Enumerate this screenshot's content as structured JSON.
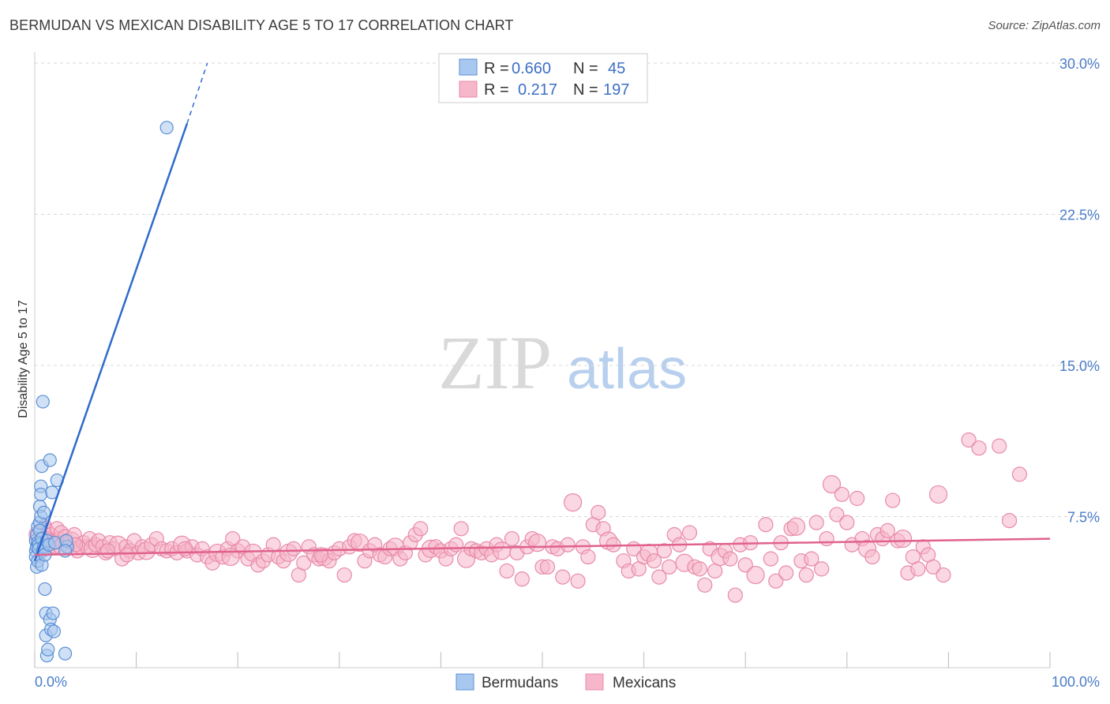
{
  "title": "BERMUDAN VS MEXICAN DISABILITY AGE 5 TO 17 CORRELATION CHART",
  "source": "Source: ZipAtlas.com",
  "watermark": {
    "zip": "ZIP",
    "atlas": "atlas"
  },
  "colors": {
    "blue_fill": "#a9c8ef",
    "blue_stroke": "#5a8fd6",
    "blue_line": "#2f6bcc",
    "pink_fill": "#f6b7cb",
    "pink_stroke": "#e88aa8",
    "pink_line": "#e0628d",
    "grid": "#d8d8d8",
    "tick_text": "#4a7cc9"
  },
  "legend": {
    "bermudans": {
      "r_label": "R =",
      "r_value": "0.660",
      "n_label": "N =",
      "n_value": "45"
    },
    "mexicans": {
      "r_label": "R =",
      "r_value": "0.217",
      "n_label": "N =",
      "n_value": "197"
    }
  },
  "chart_data": {
    "type": "scatter",
    "title": "BERMUDAN VS MEXICAN DISABILITY AGE 5 TO 17 CORRELATION CHART",
    "xlabel": "",
    "ylabel": "Disability Age 5 to 17",
    "xlim": [
      0,
      100
    ],
    "ylim": [
      0,
      30
    ],
    "x_tick_labels": [
      "0.0%",
      "100.0%"
    ],
    "y_ticks": [
      7.5,
      15.0,
      22.5,
      30.0
    ],
    "y_tick_labels": [
      "7.5%",
      "15.0%",
      "22.5%",
      "30.0%"
    ],
    "grid": true,
    "legend_position": "bottom-center",
    "series": [
      {
        "name": "Bermudans",
        "color": "#5a8fd6",
        "r": 0.66,
        "n": 45,
        "trend": {
          "x": [
            0.0,
            15.0
          ],
          "y": [
            5.3,
            27.0
          ],
          "dashed_to": [
            17.0,
            30.0
          ]
        },
        "points": [
          [
            0.1,
            6.3
          ],
          [
            0.1,
            5.8
          ],
          [
            0.1,
            5.5
          ],
          [
            0.2,
            5.0
          ],
          [
            0.2,
            6.0
          ],
          [
            0.2,
            6.6
          ],
          [
            0.3,
            7.0
          ],
          [
            0.3,
            6.2
          ],
          [
            0.3,
            5.3
          ],
          [
            0.4,
            6.1
          ],
          [
            0.4,
            5.9
          ],
          [
            0.5,
            8.0
          ],
          [
            0.5,
            7.2
          ],
          [
            0.5,
            6.8
          ],
          [
            0.6,
            9.0
          ],
          [
            0.6,
            8.6
          ],
          [
            0.6,
            7.5
          ],
          [
            0.7,
            10.0
          ],
          [
            0.7,
            6.4
          ],
          [
            0.7,
            5.1
          ],
          [
            0.8,
            13.2
          ],
          [
            0.8,
            5.8
          ],
          [
            0.9,
            7.7
          ],
          [
            0.9,
            6.0
          ],
          [
            1.0,
            3.9
          ],
          [
            1.0,
            5.6
          ],
          [
            1.1,
            2.7
          ],
          [
            1.1,
            1.6
          ],
          [
            1.2,
            0.6
          ],
          [
            1.2,
            6.3
          ],
          [
            1.3,
            0.9
          ],
          [
            1.4,
            6.1
          ],
          [
            1.5,
            10.3
          ],
          [
            1.5,
            2.4
          ],
          [
            1.6,
            1.9
          ],
          [
            1.7,
            8.7
          ],
          [
            1.8,
            2.7
          ],
          [
            1.9,
            1.8
          ],
          [
            2.0,
            6.2
          ],
          [
            2.2,
            9.3
          ],
          [
            3.0,
            0.7
          ],
          [
            3.2,
            6.0
          ],
          [
            3.1,
            6.3
          ],
          [
            3.0,
            5.8
          ],
          [
            13.0,
            26.8
          ]
        ]
      },
      {
        "name": "Mexicans",
        "color": "#e88aa8",
        "r": 0.217,
        "n": 197,
        "trend": {
          "x": [
            0.0,
            100.0
          ],
          "y": [
            5.6,
            6.4
          ]
        },
        "points": [
          [
            0.5,
            6.5
          ],
          [
            0.8,
            6.2
          ],
          [
            1.0,
            7.0
          ],
          [
            1.2,
            6.8
          ],
          [
            1.4,
            6.0
          ],
          [
            1.6,
            6.6
          ],
          [
            1.8,
            6.3
          ],
          [
            2.0,
            6.1
          ],
          [
            2.2,
            6.9
          ],
          [
            2.4,
            6.4
          ],
          [
            2.6,
            6.7
          ],
          [
            2.8,
            6.2
          ],
          [
            3.0,
            6.5
          ],
          [
            3.3,
            6.0
          ],
          [
            3.6,
            6.3
          ],
          [
            3.9,
            6.6
          ],
          [
            4.2,
            5.8
          ],
          [
            4.5,
            6.0
          ],
          [
            4.8,
            6.2
          ],
          [
            5.1,
            6.0
          ],
          [
            5.4,
            6.4
          ],
          [
            5.7,
            5.9
          ],
          [
            6.0,
            6.1
          ],
          [
            6.3,
            6.3
          ],
          [
            6.7,
            6.0
          ],
          [
            7.0,
            5.7
          ],
          [
            7.4,
            6.2
          ],
          [
            7.8,
            5.9
          ],
          [
            8.2,
            6.1
          ],
          [
            8.6,
            5.4
          ],
          [
            9.0,
            6.0
          ],
          [
            9.4,
            5.8
          ],
          [
            9.8,
            6.3
          ],
          [
            10.2,
            5.7
          ],
          [
            10.6,
            6.0
          ],
          [
            11.0,
            5.8
          ],
          [
            11.5,
            6.1
          ],
          [
            12.0,
            6.4
          ],
          [
            12.5,
            5.9
          ],
          [
            13.0,
            5.8
          ],
          [
            13.5,
            5.9
          ],
          [
            14.0,
            5.7
          ],
          [
            14.5,
            6.1
          ],
          [
            15.0,
            5.8
          ],
          [
            15.5,
            6.0
          ],
          [
            16.0,
            5.6
          ],
          [
            16.5,
            5.9
          ],
          [
            17.0,
            5.5
          ],
          [
            17.5,
            5.2
          ],
          [
            18.0,
            5.7
          ],
          [
            18.5,
            5.5
          ],
          [
            19.0,
            5.9
          ],
          [
            19.5,
            6.4
          ],
          [
            20.0,
            5.8
          ],
          [
            20.5,
            6.0
          ],
          [
            21.0,
            5.4
          ],
          [
            21.5,
            5.7
          ],
          [
            22.0,
            5.1
          ],
          [
            22.5,
            5.3
          ],
          [
            23.0,
            5.6
          ],
          [
            23.5,
            6.1
          ],
          [
            24.0,
            5.5
          ],
          [
            24.5,
            5.3
          ],
          [
            25.0,
            5.7
          ],
          [
            25.5,
            5.9
          ],
          [
            26.0,
            4.6
          ],
          [
            26.5,
            5.2
          ],
          [
            27.0,
            6.0
          ],
          [
            27.5,
            5.6
          ],
          [
            28.0,
            5.4
          ],
          [
            28.5,
            5.5
          ],
          [
            29.0,
            5.3
          ],
          [
            29.5,
            5.7
          ],
          [
            30.0,
            5.9
          ],
          [
            30.5,
            4.6
          ],
          [
            31.0,
            6.0
          ],
          [
            31.5,
            6.3
          ],
          [
            32.0,
            6.2
          ],
          [
            32.5,
            5.3
          ],
          [
            33.0,
            5.8
          ],
          [
            33.5,
            6.1
          ],
          [
            34.0,
            5.6
          ],
          [
            34.5,
            5.5
          ],
          [
            35.0,
            5.9
          ],
          [
            35.5,
            6.0
          ],
          [
            36.0,
            5.4
          ],
          [
            36.5,
            5.7
          ],
          [
            37.0,
            6.2
          ],
          [
            37.5,
            6.6
          ],
          [
            38.0,
            6.9
          ],
          [
            38.5,
            5.6
          ],
          [
            39.0,
            5.9
          ],
          [
            39.5,
            6.0
          ],
          [
            40.0,
            5.8
          ],
          [
            40.5,
            5.4
          ],
          [
            41.0,
            5.9
          ],
          [
            41.5,
            6.1
          ],
          [
            42.0,
            6.9
          ],
          [
            42.5,
            5.4
          ],
          [
            43.0,
            5.9
          ],
          [
            43.5,
            5.8
          ],
          [
            44.0,
            5.7
          ],
          [
            44.5,
            5.9
          ],
          [
            45.0,
            5.6
          ],
          [
            45.5,
            6.1
          ],
          [
            46.0,
            5.8
          ],
          [
            46.5,
            4.8
          ],
          [
            47.0,
            6.4
          ],
          [
            47.5,
            5.7
          ],
          [
            48.0,
            4.4
          ],
          [
            48.5,
            6.0
          ],
          [
            49.0,
            6.4
          ],
          [
            49.5,
            6.2
          ],
          [
            50.0,
            5.0
          ],
          [
            50.5,
            5.0
          ],
          [
            51.0,
            6.0
          ],
          [
            51.5,
            5.9
          ],
          [
            52.0,
            4.5
          ],
          [
            52.5,
            6.1
          ],
          [
            53.0,
            8.2
          ],
          [
            53.5,
            4.3
          ],
          [
            54.0,
            6.0
          ],
          [
            54.5,
            5.5
          ],
          [
            55.0,
            7.1
          ],
          [
            55.5,
            7.7
          ],
          [
            56.0,
            6.9
          ],
          [
            56.5,
            6.3
          ],
          [
            57.0,
            6.1
          ],
          [
            58.0,
            5.3
          ],
          [
            58.5,
            4.8
          ],
          [
            59.0,
            5.9
          ],
          [
            59.5,
            4.9
          ],
          [
            60.0,
            5.5
          ],
          [
            60.5,
            5.7
          ],
          [
            61.0,
            5.3
          ],
          [
            61.5,
            4.5
          ],
          [
            62.0,
            5.8
          ],
          [
            62.5,
            5.0
          ],
          [
            63.0,
            6.6
          ],
          [
            63.5,
            6.1
          ],
          [
            64.0,
            5.2
          ],
          [
            64.5,
            6.7
          ],
          [
            65.0,
            5.0
          ],
          [
            65.5,
            4.9
          ],
          [
            66.0,
            4.1
          ],
          [
            66.5,
            5.9
          ],
          [
            67.0,
            4.8
          ],
          [
            67.5,
            5.5
          ],
          [
            68.0,
            5.8
          ],
          [
            68.5,
            5.4
          ],
          [
            69.0,
            3.6
          ],
          [
            69.5,
            6.1
          ],
          [
            70.0,
            5.1
          ],
          [
            70.5,
            6.2
          ],
          [
            71.0,
            4.6
          ],
          [
            72.0,
            7.1
          ],
          [
            72.5,
            5.4
          ],
          [
            73.0,
            4.3
          ],
          [
            73.5,
            6.2
          ],
          [
            74.0,
            4.7
          ],
          [
            74.5,
            6.9
          ],
          [
            75.0,
            7.0
          ],
          [
            75.5,
            5.3
          ],
          [
            76.0,
            4.6
          ],
          [
            76.5,
            5.4
          ],
          [
            77.0,
            7.2
          ],
          [
            77.5,
            4.9
          ],
          [
            78.0,
            6.4
          ],
          [
            78.5,
            9.1
          ],
          [
            79.0,
            7.6
          ],
          [
            79.5,
            8.6
          ],
          [
            80.0,
            7.2
          ],
          [
            80.5,
            6.1
          ],
          [
            81.0,
            8.4
          ],
          [
            81.5,
            6.4
          ],
          [
            82.0,
            5.9
          ],
          [
            82.5,
            5.5
          ],
          [
            83.0,
            6.6
          ],
          [
            83.5,
            6.4
          ],
          [
            84.0,
            6.8
          ],
          [
            84.5,
            8.3
          ],
          [
            85.0,
            6.3
          ],
          [
            85.5,
            6.4
          ],
          [
            86.0,
            4.7
          ],
          [
            86.5,
            5.5
          ],
          [
            87.0,
            4.9
          ],
          [
            87.5,
            6.0
          ],
          [
            88.0,
            5.6
          ],
          [
            88.5,
            5.0
          ],
          [
            89.0,
            8.6
          ],
          [
            89.5,
            4.6
          ],
          [
            92.0,
            11.3
          ],
          [
            93.0,
            10.9
          ],
          [
            95.0,
            11.0
          ],
          [
            96.0,
            7.3
          ],
          [
            97.0,
            9.6
          ],
          [
            0.3,
            6.6
          ],
          [
            1.1,
            6.4
          ],
          [
            2.5,
            6.0
          ],
          [
            4.0,
            6.1
          ],
          [
            7.2,
            5.8
          ],
          [
            9.1,
            5.6
          ],
          [
            14.8,
            5.9
          ],
          [
            19.3,
            5.5
          ],
          [
            28.2,
            5.6
          ]
        ]
      }
    ]
  }
}
